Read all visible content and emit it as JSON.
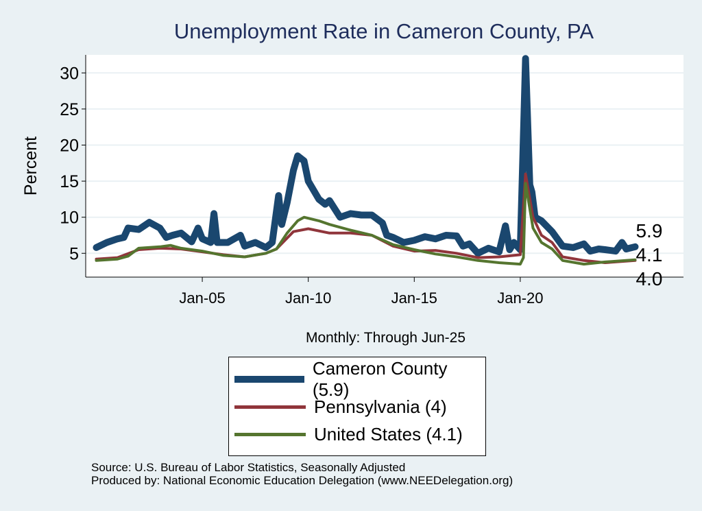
{
  "chart_data": {
    "type": "line",
    "title": "Unemployment Rate in Cameron  County, PA",
    "xlabel": "Monthly: Through Jun-25",
    "ylabel": "Percent",
    "xlim": [
      1999.5,
      2027.7
    ],
    "ylim": [
      1.7,
      32.5
    ],
    "x_ticks": [
      {
        "value": 2005,
        "label": "Jan-05"
      },
      {
        "value": 2010,
        "label": "Jan-10"
      },
      {
        "value": 2015,
        "label": "Jan-15"
      },
      {
        "value": 2020,
        "label": "Jan-20"
      }
    ],
    "y_ticks": [
      5,
      10,
      15,
      20,
      25,
      30
    ],
    "grid": "horizontal",
    "legend_position": "bottom",
    "series": [
      {
        "name": "Cameron  County (5.9)",
        "end_label": "5.9",
        "color": "#1a476f",
        "points": [
          [
            2000.0,
            5.8
          ],
          [
            2000.5,
            6.5
          ],
          [
            2001.0,
            7
          ],
          [
            2001.3,
            7.2
          ],
          [
            2001.5,
            8.5
          ],
          [
            2002.0,
            8.3
          ],
          [
            2002.5,
            9.3
          ],
          [
            2003.0,
            8.5
          ],
          [
            2003.3,
            7.2
          ],
          [
            2003.6,
            7.5
          ],
          [
            2004.0,
            7.8
          ],
          [
            2004.5,
            6.6
          ],
          [
            2004.8,
            8.5
          ],
          [
            2005.0,
            7
          ],
          [
            2005.4,
            6.5
          ],
          [
            2005.55,
            10.5
          ],
          [
            2005.7,
            6.5
          ],
          [
            2006.2,
            6.5
          ],
          [
            2006.8,
            7.5
          ],
          [
            2007.0,
            6
          ],
          [
            2007.5,
            6.5
          ],
          [
            2008.0,
            5.8
          ],
          [
            2008.3,
            6.5
          ],
          [
            2008.6,
            13
          ],
          [
            2008.75,
            9
          ],
          [
            2009.0,
            12
          ],
          [
            2009.3,
            16.5
          ],
          [
            2009.5,
            18.5
          ],
          [
            2009.8,
            17.8
          ],
          [
            2010.0,
            15
          ],
          [
            2010.5,
            12.5
          ],
          [
            2010.8,
            11.8
          ],
          [
            2011.0,
            12.3
          ],
          [
            2011.5,
            10
          ],
          [
            2012.0,
            10.5
          ],
          [
            2012.5,
            10.3
          ],
          [
            2013.0,
            10.3
          ],
          [
            2013.5,
            9.2
          ],
          [
            2013.7,
            7.5
          ],
          [
            2014.0,
            7.2
          ],
          [
            2014.5,
            6.5
          ],
          [
            2015.0,
            6.8
          ],
          [
            2015.5,
            7.3
          ],
          [
            2016.0,
            7
          ],
          [
            2016.5,
            7.5
          ],
          [
            2017.0,
            7.4
          ],
          [
            2017.3,
            6
          ],
          [
            2017.6,
            6.3
          ],
          [
            2018.0,
            5
          ],
          [
            2018.5,
            5.7
          ],
          [
            2019.0,
            5.2
          ],
          [
            2019.3,
            8.8
          ],
          [
            2019.5,
            5.5
          ],
          [
            2019.7,
            6.5
          ],
          [
            2020.0,
            5.5
          ],
          [
            2020.25,
            32
          ],
          [
            2020.45,
            14.5
          ],
          [
            2020.55,
            13.5
          ],
          [
            2020.7,
            10
          ],
          [
            2021.0,
            9.5
          ],
          [
            2021.5,
            8
          ],
          [
            2022.0,
            6
          ],
          [
            2022.5,
            5.8
          ],
          [
            2023.0,
            6.3
          ],
          [
            2023.3,
            5.3
          ],
          [
            2023.7,
            5.6
          ],
          [
            2024.0,
            5.5
          ],
          [
            2024.5,
            5.3
          ],
          [
            2024.8,
            6.5
          ],
          [
            2025.0,
            5.6
          ],
          [
            2025.42,
            5.9
          ]
        ]
      },
      {
        "name": "Pennsylvania (4)",
        "end_label": "4.0",
        "color": "#90353b",
        "points": [
          [
            2000.0,
            4.2
          ],
          [
            2001.0,
            4.4
          ],
          [
            2002.0,
            5.5
          ],
          [
            2003.0,
            5.7
          ],
          [
            2004.0,
            5.6
          ],
          [
            2005.0,
            5.2
          ],
          [
            2006.0,
            4.8
          ],
          [
            2007.0,
            4.5
          ],
          [
            2008.0,
            5
          ],
          [
            2008.5,
            5.6
          ],
          [
            2009.3,
            8
          ],
          [
            2010.0,
            8.4
          ],
          [
            2011.0,
            7.8
          ],
          [
            2012.0,
            7.8
          ],
          [
            2013.0,
            7.5
          ],
          [
            2014.0,
            6
          ],
          [
            2015.0,
            5.3
          ],
          [
            2016.0,
            5.4
          ],
          [
            2017.0,
            5
          ],
          [
            2018.0,
            4.4
          ],
          [
            2019.0,
            4.5
          ],
          [
            2020.0,
            4.8
          ],
          [
            2020.25,
            16
          ],
          [
            2020.6,
            10
          ],
          [
            2021.0,
            7.5
          ],
          [
            2021.5,
            6.5
          ],
          [
            2022.0,
            4.5
          ],
          [
            2023.0,
            4
          ],
          [
            2024.0,
            3.7
          ],
          [
            2025.42,
            4.0
          ]
        ]
      },
      {
        "name": "United States (4.1)",
        "end_label": "4.1",
        "color": "#55752f",
        "points": [
          [
            2000.0,
            4.0
          ],
          [
            2001.0,
            4.2
          ],
          [
            2001.5,
            4.6
          ],
          [
            2002.0,
            5.7
          ],
          [
            2003.0,
            5.9
          ],
          [
            2003.5,
            6.1
          ],
          [
            2004.0,
            5.7
          ],
          [
            2005.0,
            5.3
          ],
          [
            2006.0,
            4.7
          ],
          [
            2007.0,
            4.5
          ],
          [
            2008.0,
            5
          ],
          [
            2008.5,
            5.6
          ],
          [
            2009.0,
            7.8
          ],
          [
            2009.5,
            9.5
          ],
          [
            2009.8,
            10
          ],
          [
            2010.5,
            9.5
          ],
          [
            2011.0,
            9
          ],
          [
            2012.0,
            8.2
          ],
          [
            2013.0,
            7.5
          ],
          [
            2014.0,
            6.2
          ],
          [
            2015.0,
            5.5
          ],
          [
            2016.0,
            4.9
          ],
          [
            2017.0,
            4.5
          ],
          [
            2018.0,
            4
          ],
          [
            2019.0,
            3.7
          ],
          [
            2020.0,
            3.5
          ],
          [
            2020.15,
            4.4
          ],
          [
            2020.25,
            14.7
          ],
          [
            2020.6,
            8.5
          ],
          [
            2021.0,
            6.5
          ],
          [
            2021.5,
            5.6
          ],
          [
            2022.0,
            4
          ],
          [
            2023.0,
            3.5
          ],
          [
            2024.0,
            3.8
          ],
          [
            2025.42,
            4.1
          ]
        ]
      }
    ]
  },
  "footer": {
    "source": "Source: U.S. Bureau of Labor Statistics, Seasonally Adjusted",
    "produced": "Produced by: National Economic Education Delegation (www.NEEDelegation.org)"
  }
}
